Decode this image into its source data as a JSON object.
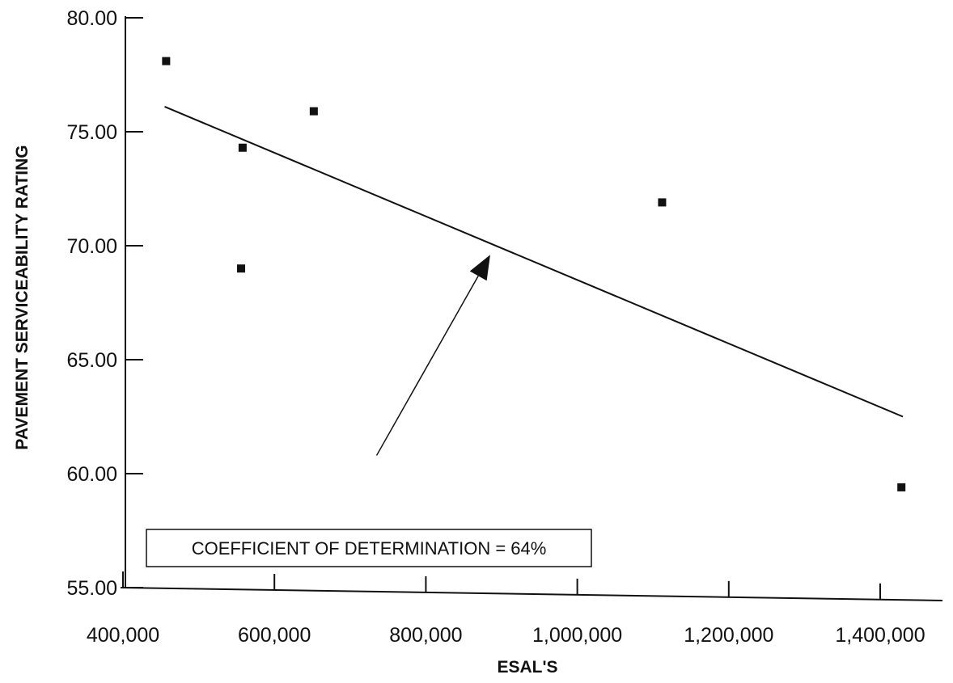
{
  "chart_data": {
    "type": "scatter",
    "title": "",
    "xlabel": "ESAL'S",
    "ylabel": "PAVEMENT SERVICEABILITY RATING",
    "xlim": [
      400000,
      1500000
    ],
    "ylim": [
      55,
      80
    ],
    "x_ticks": [
      400000,
      600000,
      800000,
      1000000,
      1200000,
      1400000
    ],
    "x_tick_labels": [
      "400,000",
      "600,000",
      "800,000",
      "1,000,000",
      "1,200,000",
      "1,400,000"
    ],
    "y_ticks": [
      55,
      60,
      65,
      70,
      75,
      80
    ],
    "y_tick_labels": [
      "55.00",
      "60.00",
      "65.00",
      "70.00",
      "75.00",
      "80.00"
    ],
    "grid": false,
    "series": [
      {
        "marker": "square",
        "points": [
          {
            "x": 457000,
            "y": 78.1
          },
          {
            "x": 558000,
            "y": 74.3
          },
          {
            "x": 556000,
            "y": 69.0
          },
          {
            "x": 652000,
            "y": 75.9
          },
          {
            "x": 1112000,
            "y": 71.9
          },
          {
            "x": 1428000,
            "y": 59.4
          }
        ]
      }
    ],
    "trendline": {
      "from": {
        "x": 455000,
        "y": 76.1
      },
      "to": {
        "x": 1430000,
        "y": 62.5
      }
    },
    "annotation": {
      "text": "COEFFICIENT OF DETERMINATION = 64%",
      "arrow_from": {
        "x": 735000,
        "y": 60.8
      },
      "arrow_to": {
        "x": 885000,
        "y": 69.6
      }
    }
  }
}
